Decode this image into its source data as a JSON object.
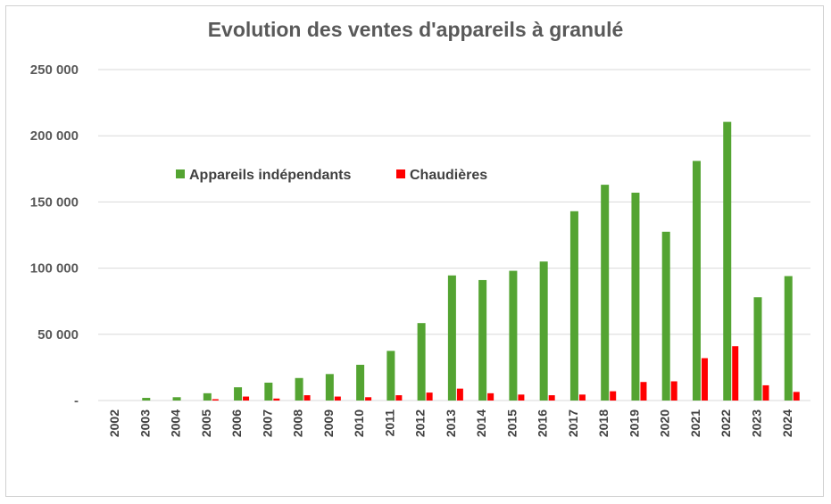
{
  "chart_data": {
    "type": "bar",
    "title": "Evolution des ventes d'appareils  à granulé",
    "xlabel": "",
    "ylabel": "",
    "ylim": [
      0,
      250000
    ],
    "yticks": [
      0,
      50000,
      100000,
      150000,
      200000,
      250000
    ],
    "ytick_labels": [
      "-",
      "50 000",
      "100 000",
      "150 000",
      "200 000",
      "250 000"
    ],
    "grid": true,
    "legend_position": "upper-left-inside",
    "categories": [
      "2002",
      "2003",
      "2004",
      "2005",
      "2006",
      "2007",
      "2008",
      "2009",
      "2010",
      "2011",
      "2012",
      "2013",
      "2014",
      "2015",
      "2016",
      "2017",
      "2018",
      "2019",
      "2020",
      "2021",
      "2022",
      "2023",
      "2024"
    ],
    "series": [
      {
        "name": "Appareils indépendants",
        "color": "#54A432",
        "values": [
          0,
          2000,
          2500,
          5500,
          10000,
          13500,
          17000,
          20000,
          27000,
          37500,
          58500,
          94500,
          91000,
          98000,
          105000,
          143000,
          163000,
          157000,
          127500,
          181000,
          210500,
          78000,
          94000
        ]
      },
      {
        "name": "Chaudières",
        "color": "#FF0000",
        "values": [
          0,
          0,
          0,
          1000,
          3000,
          1500,
          4000,
          3000,
          2500,
          4000,
          6000,
          9000,
          5500,
          4500,
          4000,
          4500,
          7000,
          14000,
          14500,
          32000,
          41000,
          11500,
          6500
        ]
      }
    ]
  }
}
